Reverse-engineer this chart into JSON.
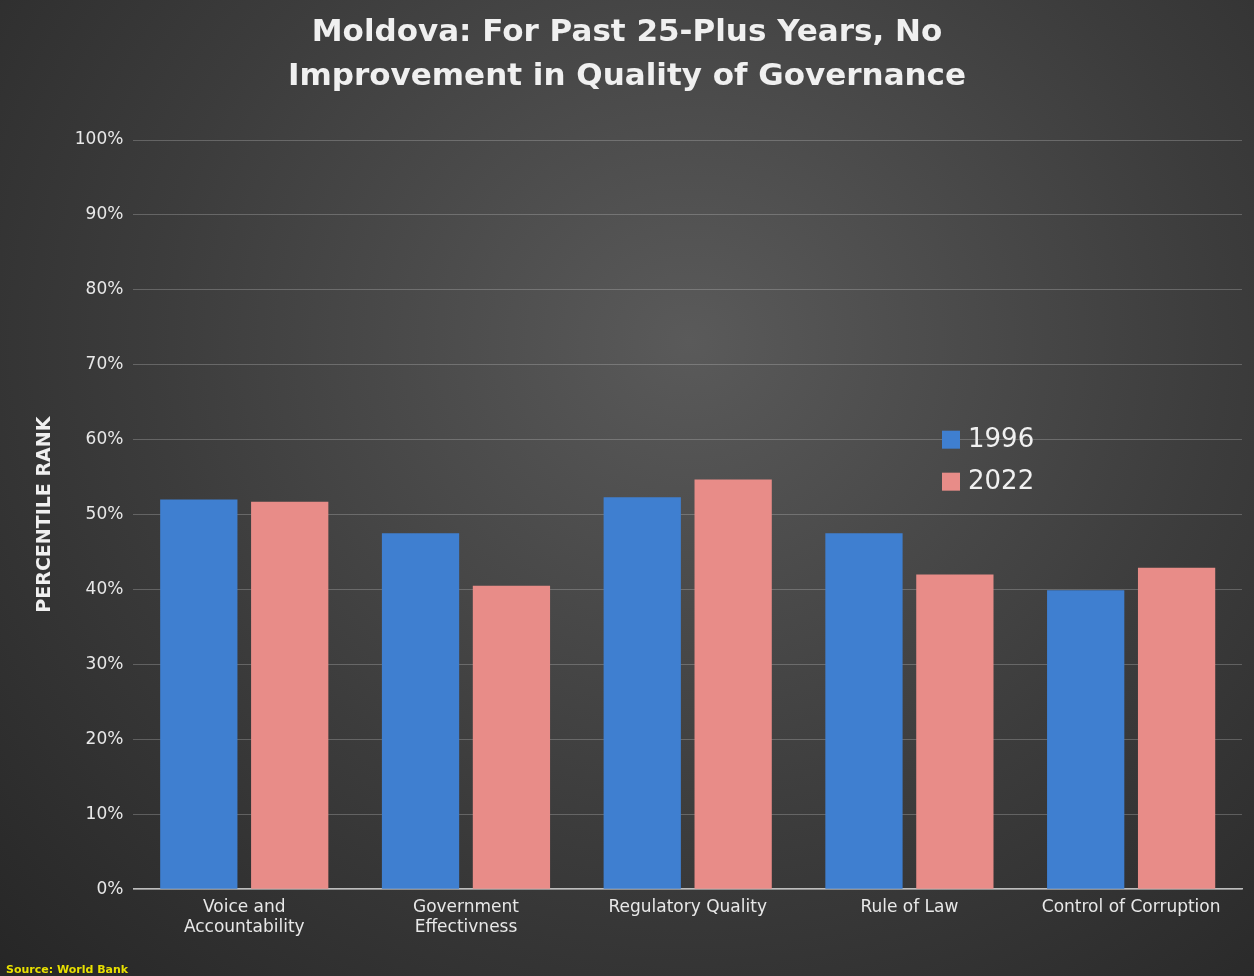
{
  "chart_data": {
    "type": "bar",
    "title": "Moldova: For Past 25-Plus Years, No Improvement in Quality of Governance",
    "ylabel": "PERCENTILE RANK",
    "categories": [
      "Voice and Accountability",
      "Government Effectivness",
      "Regulatory Quality",
      "Rule of Law",
      "Control of Corruption"
    ],
    "series": [
      {
        "name": "1996",
        "color": "#3f7fd0",
        "values": [
          52.0,
          47.5,
          52.3,
          47.5,
          39.9
        ]
      },
      {
        "name": "2022",
        "color": "#e88c88",
        "values": [
          51.7,
          40.5,
          54.7,
          42.0,
          42.9
        ]
      }
    ],
    "ylim": [
      0,
      100
    ],
    "yticks": [
      {
        "value": 0,
        "label": "0%"
      },
      {
        "value": 10,
        "label": "10%"
      },
      {
        "value": 20,
        "label": "20%"
      },
      {
        "value": 30,
        "label": "30%"
      },
      {
        "value": 40,
        "label": "40%"
      },
      {
        "value": 50,
        "label": "50%"
      },
      {
        "value": 60,
        "label": "60%"
      },
      {
        "value": 70,
        "label": "70%"
      },
      {
        "value": 80,
        "label": "80%"
      },
      {
        "value": 90,
        "label": "90%"
      },
      {
        "value": 100,
        "label": "100%"
      }
    ],
    "grid": "y",
    "legend": "right",
    "annotations": [
      "Source: World Bank"
    ]
  }
}
